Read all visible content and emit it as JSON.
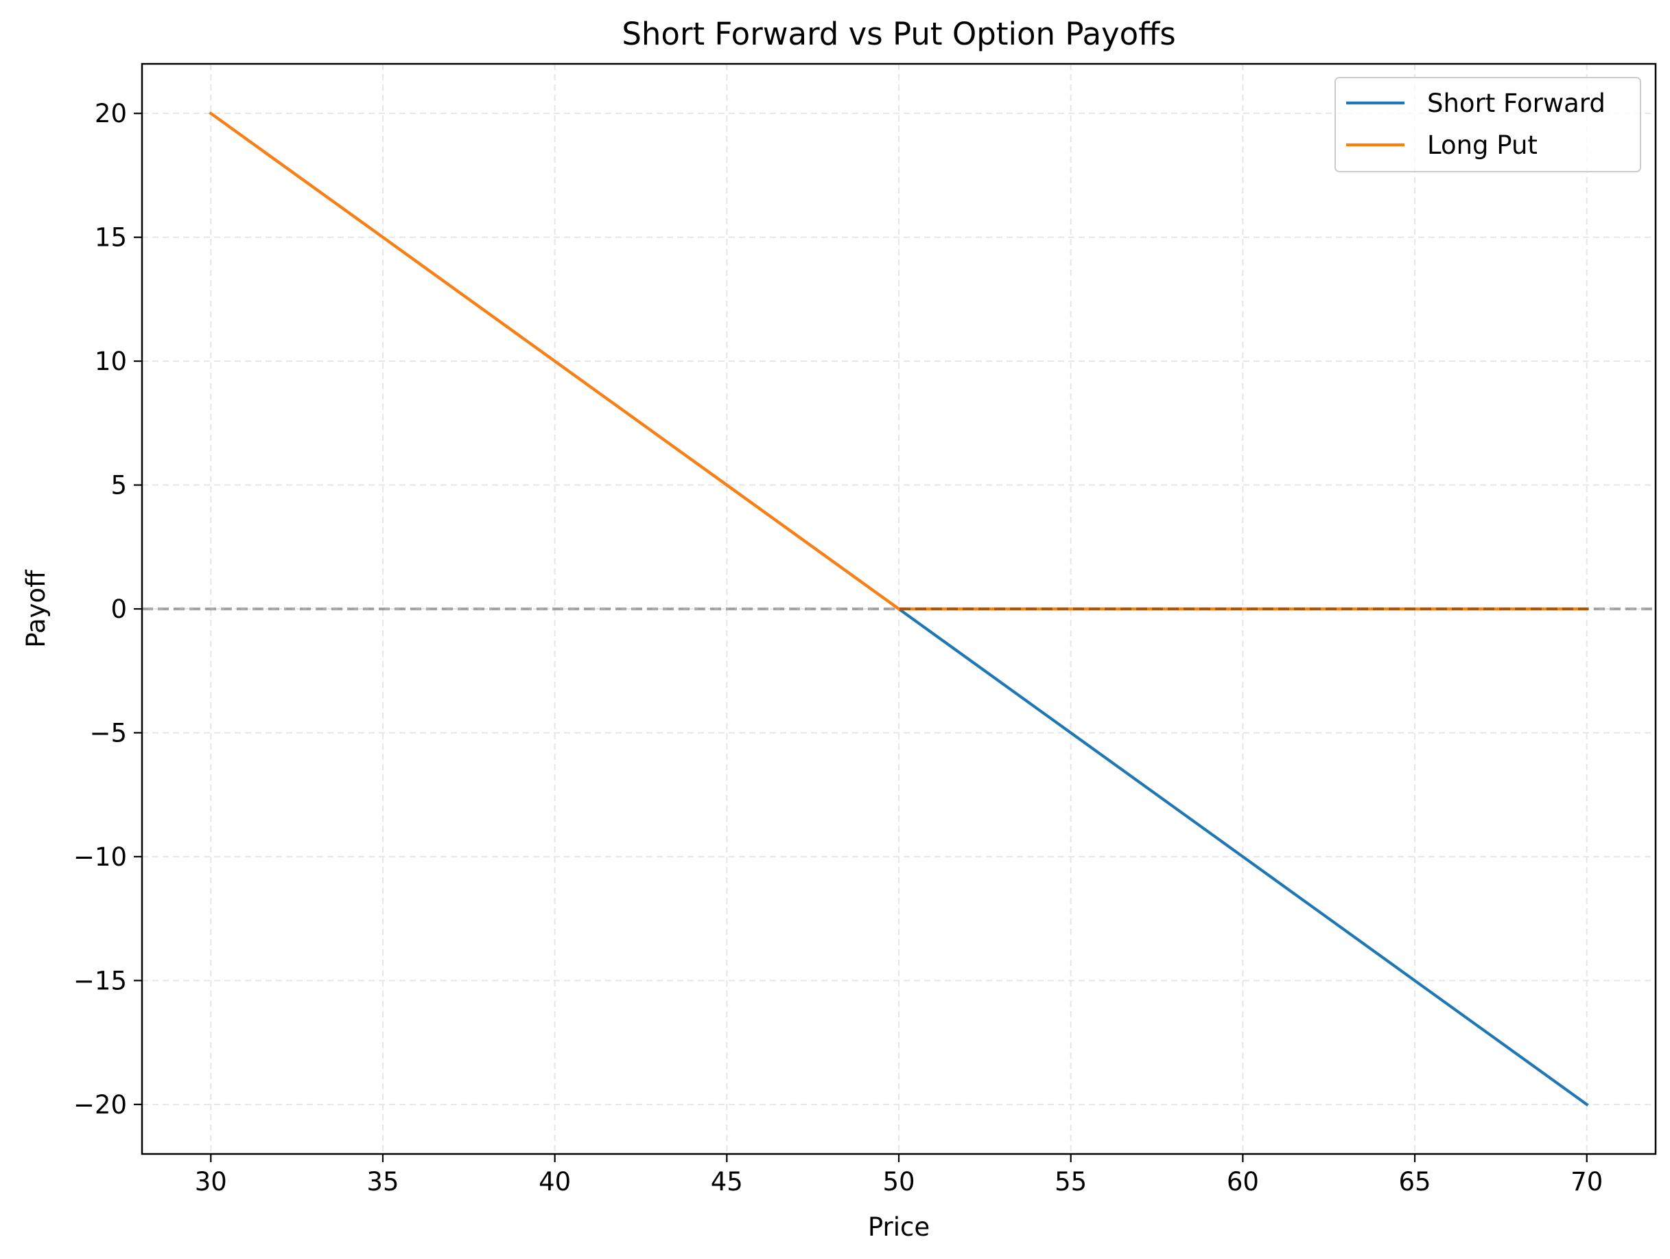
{
  "chart_data": {
    "type": "line",
    "title": "Short Forward vs Put Option Payoffs",
    "xlabel": "Price",
    "ylabel": "Payoff",
    "xlim": [
      28,
      72
    ],
    "ylim": [
      -22,
      22
    ],
    "xticks": [
      30,
      35,
      40,
      45,
      50,
      55,
      60,
      65,
      70
    ],
    "yticks": [
      20,
      15,
      10,
      5,
      0,
      -5,
      -10,
      -15,
      -20
    ],
    "xtick_labels": [
      "30",
      "35",
      "40",
      "45",
      "50",
      "55",
      "60",
      "65",
      "70"
    ],
    "ytick_labels": [
      "20",
      "15",
      "10",
      "5",
      "0",
      "−5",
      "−10",
      "−15",
      "−20"
    ],
    "grid": true,
    "legend_position": "top-right",
    "reference_line": {
      "y": 0,
      "style": "dashed",
      "color": "#999999"
    },
    "series": [
      {
        "name": "Short Forward",
        "color": "#1f77b4",
        "x": [
          30,
          35,
          40,
          45,
          50,
          55,
          60,
          65,
          70
        ],
        "y": [
          20,
          15,
          10,
          5,
          0,
          -5,
          -10,
          -15,
          -20
        ]
      },
      {
        "name": "Long Put",
        "color": "#ff7f0e",
        "x": [
          30,
          35,
          40,
          45,
          50,
          55,
          60,
          65,
          70
        ],
        "y": [
          20,
          15,
          10,
          5,
          0,
          0,
          0,
          0,
          0
        ]
      }
    ]
  }
}
